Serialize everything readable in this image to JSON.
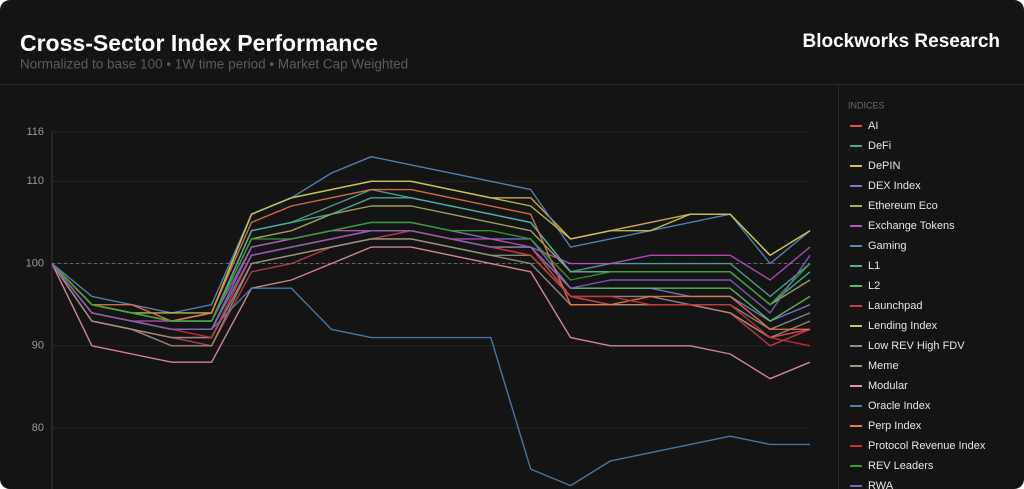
{
  "chart_data": {
    "type": "line",
    "title": "Cross-Sector Index Performance",
    "subtitle": "Normalized to base 100 • 1W time period • Market Cap Weighted",
    "brand": "Blockworks Research",
    "legend_title": "INDICES",
    "ylim": [
      72,
      116
    ],
    "yticks": [
      80,
      90,
      100,
      110,
      116
    ],
    "reference_line": 100,
    "grid": true,
    "series": [
      {
        "name": "AI",
        "color": "#e05252",
        "values": [
          100,
          93,
          92,
          91,
          91,
          101,
          102,
          103,
          104,
          104,
          103,
          102,
          102,
          96,
          95,
          95,
          95,
          94,
          91,
          92
        ]
      },
      {
        "name": "DeFi",
        "color": "#4aa89a",
        "values": [
          100,
          95,
          94,
          93,
          93,
          104,
          105,
          107,
          109,
          108,
          107,
          106,
          105,
          99,
          100,
          100,
          100,
          100,
          96,
          100
        ]
      },
      {
        "name": "DePIN",
        "color": "#e0b84a",
        "values": [
          100,
          95,
          94,
          93,
          94,
          106,
          108,
          109,
          110,
          110,
          109,
          108,
          108,
          103,
          104,
          105,
          106,
          106,
          101,
          104
        ]
      },
      {
        "name": "DEX Index",
        "color": "#7a7ad0",
        "values": [
          100,
          94,
          93,
          92,
          92,
          102,
          103,
          104,
          105,
          105,
          104,
          103,
          103,
          97,
          97,
          97,
          96,
          96,
          93,
          95
        ]
      },
      {
        "name": "Ethereum Eco",
        "color": "#a8b060",
        "values": [
          100,
          95,
          94,
          93,
          93,
          103,
          104,
          106,
          107,
          107,
          106,
          105,
          104,
          99,
          99,
          99,
          99,
          99,
          95,
          98
        ]
      },
      {
        "name": "Exchange Tokens",
        "color": "#c050c0",
        "values": [
          100,
          94,
          93,
          93,
          93,
          102,
          103,
          104,
          104,
          104,
          103,
          103,
          102,
          100,
          100,
          101,
          101,
          101,
          98,
          102
        ]
      },
      {
        "name": "Gaming",
        "color": "#5a8ac0",
        "values": [
          100,
          96,
          95,
          94,
          95,
          106,
          108,
          111,
          113,
          112,
          111,
          110,
          109,
          102,
          103,
          104,
          105,
          106,
          100,
          104
        ]
      },
      {
        "name": "L1",
        "color": "#50b0a0",
        "values": [
          100,
          95,
          94,
          93,
          93,
          104,
          105,
          106,
          108,
          108,
          107,
          106,
          105,
          99,
          99,
          99,
          99,
          99,
          95,
          99
        ]
      },
      {
        "name": "L2",
        "color": "#60c060",
        "values": [
          100,
          94,
          93,
          92,
          92,
          101,
          102,
          103,
          104,
          104,
          103,
          102,
          102,
          97,
          97,
          97,
          97,
          97,
          93,
          96
        ]
      },
      {
        "name": "Launchpad",
        "color": "#c04050",
        "values": [
          100,
          93,
          92,
          91,
          90,
          99,
          100,
          102,
          103,
          104,
          103,
          102,
          101,
          96,
          95,
          95,
          95,
          94,
          90,
          92
        ]
      },
      {
        "name": "Lending Index",
        "color": "#c8c850",
        "values": [
          100,
          95,
          94,
          94,
          94,
          106,
          108,
          109,
          110,
          110,
          109,
          108,
          107,
          103,
          104,
          104,
          106,
          106,
          101,
          104
        ]
      },
      {
        "name": "Low REV High FDV",
        "color": "#909090",
        "values": [
          100,
          93,
          92,
          91,
          91,
          100,
          101,
          102,
          103,
          103,
          102,
          101,
          101,
          96,
          96,
          96,
          95,
          95,
          92,
          94
        ]
      },
      {
        "name": "Meme",
        "color": "#a09080",
        "values": [
          100,
          93,
          92,
          90,
          90,
          100,
          101,
          102,
          103,
          103,
          102,
          101,
          100,
          95,
          95,
          95,
          95,
          94,
          91,
          93
        ]
      },
      {
        "name": "Modular",
        "color": "#e890a0",
        "values": [
          100,
          90,
          89,
          88,
          88,
          97,
          98,
          100,
          102,
          102,
          101,
          100,
          99,
          91,
          90,
          90,
          90,
          89,
          86,
          88
        ]
      },
      {
        "name": "Oracle Index",
        "color": "#5080b0",
        "values": [
          100,
          94,
          93,
          92,
          92,
          97,
          97,
          92,
          91,
          91,
          91,
          91,
          75,
          73,
          76,
          77,
          78,
          79,
          78,
          78
        ]
      },
      {
        "name": "Perp Index",
        "color": "#e87840",
        "values": [
          100,
          95,
          95,
          93,
          94,
          105,
          107,
          108,
          109,
          109,
          108,
          107,
          106,
          95,
          95,
          96,
          96,
          96,
          92,
          92
        ]
      },
      {
        "name": "Protocol Revenue Index",
        "color": "#d03030",
        "values": [
          100,
          94,
          93,
          92,
          91,
          101,
          102,
          103,
          104,
          104,
          103,
          102,
          101,
          96,
          96,
          95,
          95,
          95,
          91,
          90
        ]
      },
      {
        "name": "REV Leaders",
        "color": "#30a030",
        "values": [
          100,
          95,
          94,
          93,
          93,
          103,
          103,
          104,
          105,
          105,
          104,
          104,
          103,
          98,
          99,
          99,
          99,
          99,
          95,
          100
        ]
      },
      {
        "name": "RWA",
        "color": "#8060c0",
        "values": [
          100,
          94,
          93,
          92,
          92,
          101,
          102,
          103,
          104,
          104,
          103,
          102,
          102,
          97,
          98,
          98,
          98,
          98,
          94,
          101
        ]
      }
    ]
  }
}
